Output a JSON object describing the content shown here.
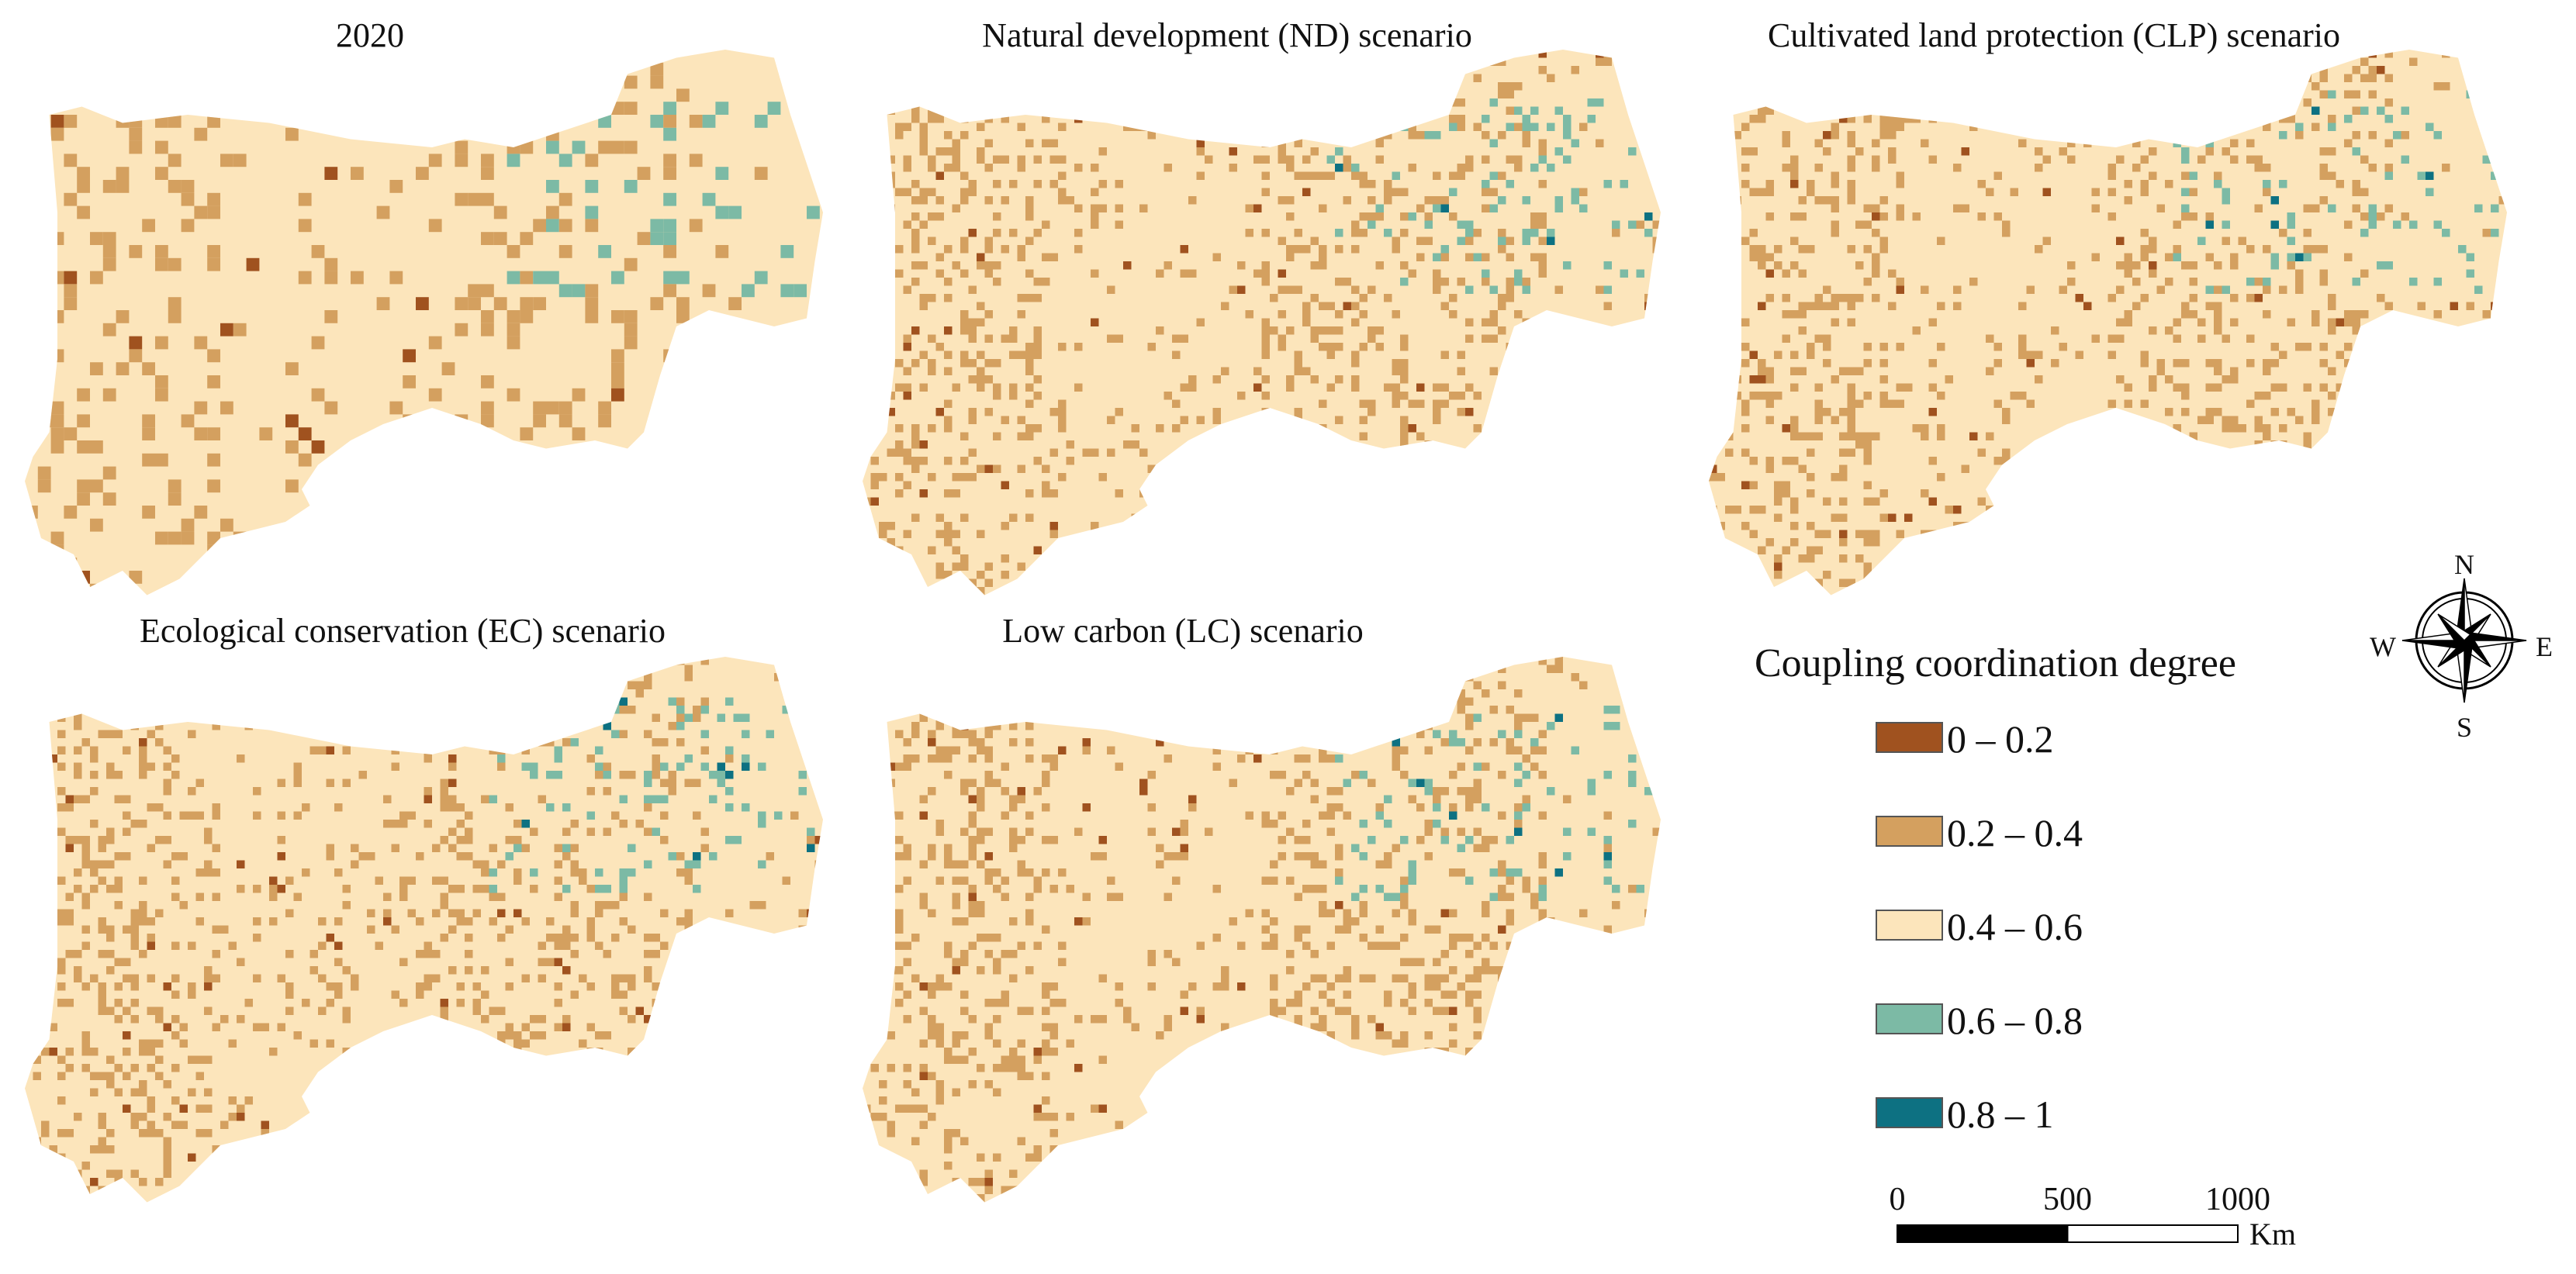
{
  "panels": [
    {
      "title": "2020"
    },
    {
      "title": "Natural development (ND) scenario"
    },
    {
      "title": "Cultivated land protection (CLP) scenario"
    },
    {
      "title": "Ecological conservation (EC) scenario"
    },
    {
      "title": "Low carbon (LC) scenario"
    }
  ],
  "legend": {
    "title": "Coupling coordination degree",
    "items": [
      {
        "label": "0 – 0.2",
        "color": "#a0521f"
      },
      {
        "label": "0.2 – 0.4",
        "color": "#d4a05f"
      },
      {
        "label": "0.4 – 0.6",
        "color": "#fce5bb"
      },
      {
        "label": "0.6 – 0.8",
        "color": "#7cbaa5"
      },
      {
        "label": "0.8 – 1",
        "color": "#0d7182"
      }
    ]
  },
  "compass": {
    "n": "N",
    "e": "E",
    "s": "S",
    "w": "W"
  },
  "scale_bar": {
    "ticks": [
      0,
      500,
      1000
    ],
    "unit": "Km"
  }
}
